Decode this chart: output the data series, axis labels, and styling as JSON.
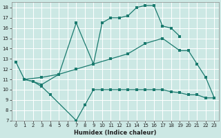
{
  "background_color": "#cce8e4",
  "grid_color": "#b8d8d4",
  "line_color": "#1a7a6e",
  "xlabel": "Humidex (Indice chaleur)",
  "ylim": [
    7,
    18.5
  ],
  "xlim": [
    -0.5,
    23.5
  ],
  "yticks": [
    7,
    8,
    9,
    10,
    11,
    12,
    13,
    14,
    15,
    16,
    17,
    18
  ],
  "xticks": [
    0,
    1,
    2,
    3,
    4,
    5,
    6,
    7,
    8,
    9,
    10,
    11,
    12,
    13,
    14,
    15,
    16,
    17,
    18,
    19,
    20,
    21,
    22,
    23
  ],
  "line1_x": [
    0,
    1,
    2,
    3,
    4,
    7,
    8,
    9,
    10,
    11,
    12,
    13,
    14,
    15,
    16,
    17,
    18,
    19,
    20,
    21,
    22,
    23
  ],
  "line1_y": [
    12.7,
    11.0,
    10.8,
    10.3,
    9.5,
    7.0,
    8.5,
    10.0,
    10.0,
    10.0,
    10.0,
    10.0,
    10.0,
    10.0,
    10.0,
    10.0,
    9.8,
    9.7,
    9.5,
    9.5,
    9.2,
    9.2
  ],
  "line2_x": [
    1,
    2,
    3,
    5,
    7,
    9,
    10,
    11,
    12,
    13,
    14,
    15,
    16,
    17,
    18,
    19
  ],
  "line2_y": [
    11.0,
    10.8,
    10.5,
    11.5,
    16.5,
    12.5,
    16.5,
    17.0,
    17.0,
    17.2,
    18.0,
    18.2,
    18.2,
    16.2,
    16.0,
    15.2
  ],
  "line3_x": [
    1,
    3,
    5,
    7,
    9,
    11,
    13,
    15,
    17,
    19,
    20,
    21,
    22,
    23
  ],
  "line3_y": [
    11.0,
    11.2,
    11.5,
    12.0,
    12.5,
    13.0,
    13.5,
    14.5,
    15.0,
    13.8,
    13.8,
    12.5,
    11.2,
    9.2
  ],
  "line4_x": [
    0,
    1
  ],
  "line4_y": [
    12.7,
    11.0
  ]
}
